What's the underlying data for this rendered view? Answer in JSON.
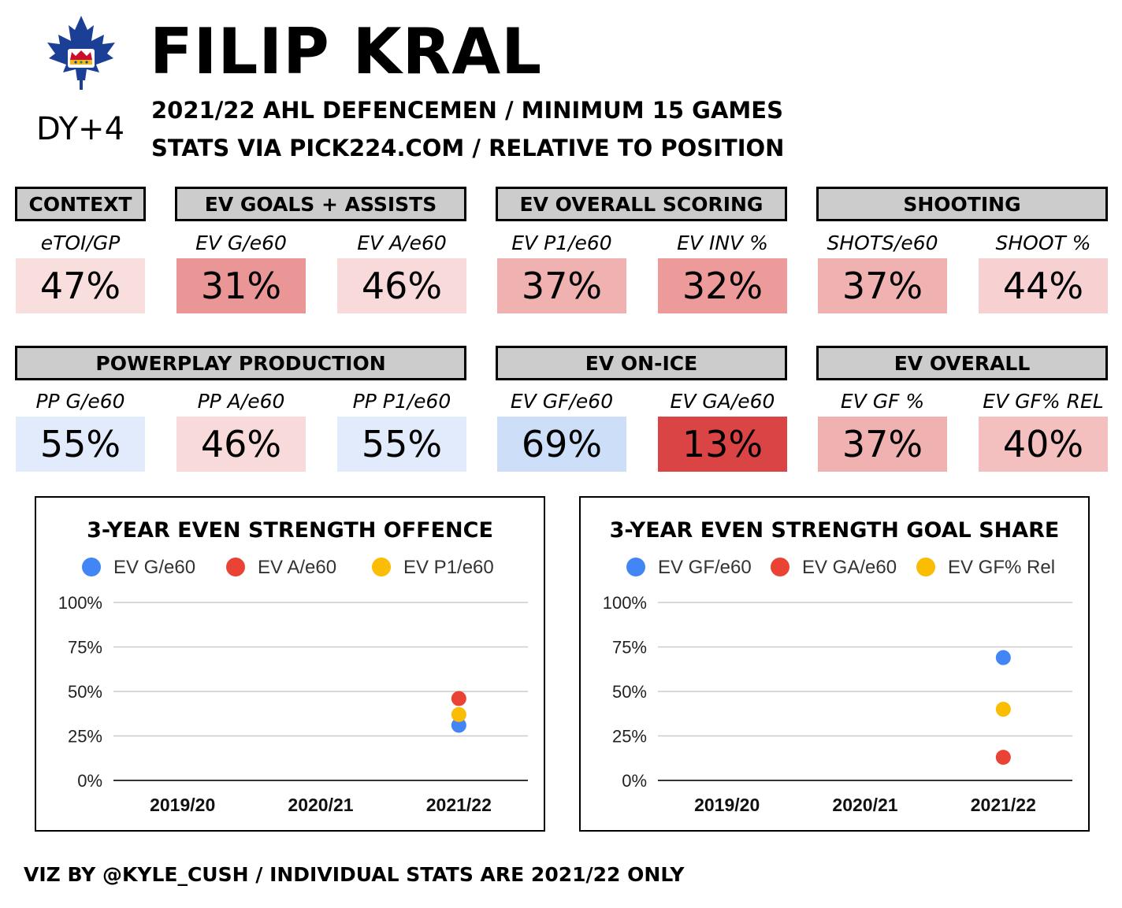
{
  "header": {
    "player_name": "FILIP KRAL",
    "draft_year_label": "DY+4",
    "subtitle_1": "2021/22 AHL DEFENCEMEN / MINIMUM 15 GAMES",
    "subtitle_2": "STATS VIA PICK224.COM / RELATIVE TO POSITION",
    "logo_icon": "maple-leaf-crown-icon",
    "logo_color": "#1a3f95"
  },
  "row1": {
    "groups": [
      "CONTEXT",
      "EV GOALS + ASSISTS",
      "EV OVERALL SCORING",
      "SHOOTING"
    ],
    "stats": [
      {
        "label": "eTOI/GP",
        "value": "47%",
        "pct": 47
      },
      {
        "label": "EV G/e60",
        "value": "31%",
        "pct": 31
      },
      {
        "label": "EV A/e60",
        "value": "46%",
        "pct": 46
      },
      {
        "label": "EV P1/e60",
        "value": "37%",
        "pct": 37
      },
      {
        "label": "EV INV %",
        "value": "32%",
        "pct": 32
      },
      {
        "label": "SHOTS/e60",
        "value": "37%",
        "pct": 37
      },
      {
        "label": "SHOOT %",
        "value": "44%",
        "pct": 44
      }
    ]
  },
  "row2": {
    "groups": [
      "POWERPLAY PRODUCTION",
      "EV ON-ICE",
      "EV OVERALL"
    ],
    "stats": [
      {
        "label": "PP G/e60",
        "value": "55%",
        "pct": 55
      },
      {
        "label": "PP A/e60",
        "value": "46%",
        "pct": 46
      },
      {
        "label": "PP P1/e60",
        "value": "55%",
        "pct": 55
      },
      {
        "label": "EV GF/e60",
        "value": "69%",
        "pct": 69
      },
      {
        "label": "EV GA/e60",
        "value": "13%",
        "pct": 13
      },
      {
        "label": "EV GF %",
        "value": "37%",
        "pct": 37
      },
      {
        "label": "EV GF% REL",
        "value": "40%",
        "pct": 40
      }
    ]
  },
  "chart_data": [
    {
      "type": "scatter",
      "title": "3-YEAR EVEN STRENGTH OFFENCE",
      "categories": [
        "2019/20",
        "2020/21",
        "2021/22"
      ],
      "y_ticks": [
        "0%",
        "25%",
        "50%",
        "75%",
        "100%"
      ],
      "ylim": [
        0,
        100
      ],
      "legend_position": "top",
      "series": [
        {
          "name": "EV G/e60",
          "color": "#4285f4",
          "values": [
            null,
            null,
            31
          ]
        },
        {
          "name": "EV A/e60",
          "color": "#ea4335",
          "values": [
            null,
            null,
            46
          ]
        },
        {
          "name": "EV P1/e60",
          "color": "#fbbc04",
          "values": [
            null,
            null,
            37
          ]
        }
      ]
    },
    {
      "type": "scatter",
      "title": "3-YEAR EVEN STRENGTH GOAL SHARE",
      "categories": [
        "2019/20",
        "2020/21",
        "2021/22"
      ],
      "y_ticks": [
        "0%",
        "25%",
        "50%",
        "75%",
        "100%"
      ],
      "ylim": [
        0,
        100
      ],
      "legend_position": "top",
      "series": [
        {
          "name": "EV GF/e60",
          "color": "#4285f4",
          "values": [
            null,
            null,
            69
          ]
        },
        {
          "name": "EV GA/e60",
          "color": "#ea4335",
          "values": [
            null,
            null,
            13
          ]
        },
        {
          "name": "EV GF% Rel",
          "color": "#fbbc04",
          "values": [
            null,
            null,
            40
          ]
        }
      ]
    }
  ],
  "footer": "VIZ BY @KYLE_CUSH / INDIVIDUAL STATS ARE 2021/22 ONLY"
}
